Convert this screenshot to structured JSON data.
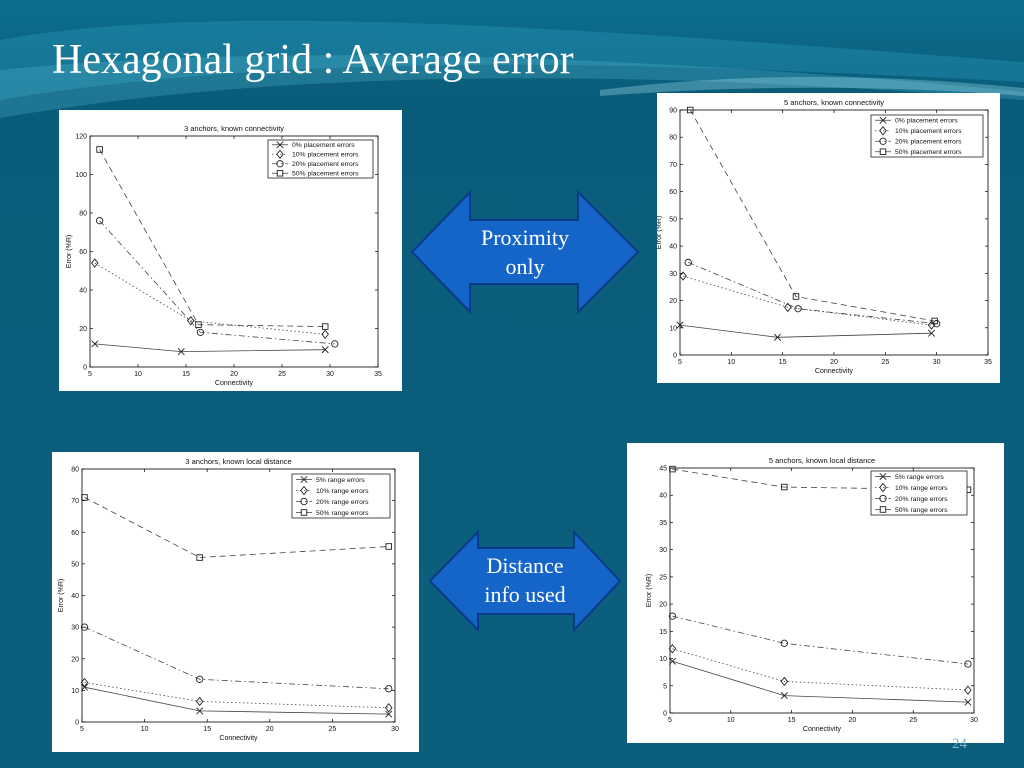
{
  "slide": {
    "title": "Hexagonal grid : Average error",
    "page_number": "24",
    "arrow_top": [
      "Proximity",
      "only"
    ],
    "arrow_bottom": [
      "Distance",
      "info used"
    ],
    "colors": {
      "background": "#0b5f7c",
      "arrow_fill": "#1565c8",
      "arrow_stroke": "#0a3a8a"
    }
  },
  "chart_data": [
    {
      "type": "line",
      "title": "3 anchors, known connectivity",
      "xlabel": "Connectivity",
      "ylabel": "Error (%R)",
      "xlim": [
        5,
        35
      ],
      "ylim": [
        0,
        120
      ],
      "xticks": [
        5,
        10,
        15,
        20,
        25,
        30,
        35
      ],
      "yticks": [
        0,
        20,
        40,
        60,
        80,
        100,
        120
      ],
      "legend": "top-right",
      "grid": false,
      "series": [
        {
          "name": "0% placement errors",
          "marker": "x",
          "dash": "solid",
          "x": [
            5.5,
            14.5,
            29.5
          ],
          "y": [
            12,
            8,
            9
          ]
        },
        {
          "name": "10% placement errors",
          "marker": "diamond",
          "dash": "dotted",
          "x": [
            5.5,
            15.5,
            29.5
          ],
          "y": [
            54,
            24,
            17
          ]
        },
        {
          "name": "20% placement errors",
          "marker": "circle",
          "dash": "dashdot",
          "x": [
            6,
            16.5,
            30.5
          ],
          "y": [
            76,
            18,
            12
          ]
        },
        {
          "name": "50% placement errors",
          "marker": "square",
          "dash": "dashed",
          "x": [
            6,
            16.3,
            29.5
          ],
          "y": [
            113,
            22,
            21
          ]
        }
      ]
    },
    {
      "type": "line",
      "title": "5 anchors, known connectivity",
      "xlabel": "Connectivity",
      "ylabel": "Error (%R)",
      "xlim": [
        5,
        35
      ],
      "ylim": [
        0,
        90
      ],
      "xticks": [
        5,
        10,
        15,
        20,
        25,
        30,
        35
      ],
      "yticks": [
        0,
        10,
        20,
        30,
        40,
        50,
        60,
        70,
        80,
        90
      ],
      "legend": "top-right",
      "grid": false,
      "series": [
        {
          "name": "0% placement errors",
          "marker": "x",
          "dash": "solid",
          "x": [
            5,
            14.5,
            29.5
          ],
          "y": [
            11,
            6.5,
            8
          ]
        },
        {
          "name": "10% placement errors",
          "marker": "diamond",
          "dash": "dotted",
          "x": [
            5.3,
            15.5,
            29.5
          ],
          "y": [
            29,
            17.5,
            11
          ]
        },
        {
          "name": "20% placement errors",
          "marker": "circle",
          "dash": "dashdot",
          "x": [
            5.8,
            16.5,
            30
          ],
          "y": [
            34,
            17,
            11.5
          ]
        },
        {
          "name": "50% placement errors",
          "marker": "square",
          "dash": "dashed",
          "x": [
            6,
            16.3,
            29.8
          ],
          "y": [
            90,
            21.5,
            12.5
          ]
        }
      ]
    },
    {
      "type": "line",
      "title": "3 anchors, known local distance",
      "xlabel": "Connectivity",
      "ylabel": "Error (%R)",
      "xlim": [
        5,
        30
      ],
      "ylim": [
        0,
        80
      ],
      "xticks": [
        5,
        10,
        15,
        20,
        25,
        30
      ],
      "yticks": [
        0,
        10,
        20,
        30,
        40,
        50,
        60,
        70,
        80
      ],
      "legend": "top-right",
      "grid": false,
      "series": [
        {
          "name": "5% range errors",
          "marker": "x",
          "dash": "solid",
          "x": [
            5.2,
            14.4,
            29.5
          ],
          "y": [
            11,
            3.5,
            2.5
          ]
        },
        {
          "name": "10% range errors",
          "marker": "diamond",
          "dash": "dotted",
          "x": [
            5.2,
            14.4,
            29.5
          ],
          "y": [
            12.5,
            6.5,
            4.5
          ]
        },
        {
          "name": "20% range errors",
          "marker": "circle",
          "dash": "dashdot",
          "x": [
            5.2,
            14.4,
            29.5
          ],
          "y": [
            30,
            13.5,
            10.5
          ]
        },
        {
          "name": "50% range errors",
          "marker": "square",
          "dash": "dashed",
          "x": [
            5.2,
            14.4,
            29.5
          ],
          "y": [
            71,
            52,
            55.5
          ]
        }
      ]
    },
    {
      "type": "line",
      "title": "5 anchors, known local distance",
      "xlabel": "Connectivity",
      "ylabel": "Error (%R)",
      "xlim": [
        5,
        30
      ],
      "ylim": [
        0,
        45
      ],
      "xticks": [
        5,
        10,
        15,
        20,
        25,
        30
      ],
      "yticks": [
        0,
        5,
        10,
        15,
        20,
        25,
        30,
        35,
        40,
        45
      ],
      "legend": "top-right",
      "grid": false,
      "series": [
        {
          "name": "5% range errors",
          "marker": "x",
          "dash": "solid",
          "x": [
            5.2,
            14.4,
            29.5
          ],
          "y": [
            9.5,
            3.2,
            2
          ]
        },
        {
          "name": "10% range errors",
          "marker": "diamond",
          "dash": "dotted",
          "x": [
            5.2,
            14.4,
            29.5
          ],
          "y": [
            11.8,
            5.8,
            4.2
          ]
        },
        {
          "name": "20% range errors",
          "marker": "circle",
          "dash": "dashdot",
          "x": [
            5.2,
            14.4,
            29.5
          ],
          "y": [
            17.8,
            12.8,
            9
          ]
        },
        {
          "name": "50% range errors",
          "marker": "square",
          "dash": "dashed",
          "x": [
            5.2,
            14.4,
            29.5
          ],
          "y": [
            44.8,
            41.5,
            41
          ]
        }
      ]
    }
  ]
}
